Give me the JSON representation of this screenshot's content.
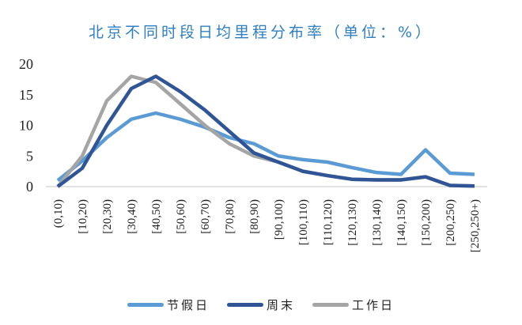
{
  "title": "北京不同时段日均里程分布率（单位：%）",
  "chart_data": {
    "type": "line",
    "title": "北京不同时段日均里程分布率（单位：%）",
    "xlabel": "",
    "ylabel": "",
    "ylim": [
      0,
      20
    ],
    "yticks": [
      0,
      5,
      10,
      15,
      20
    ],
    "grid": false,
    "legend_position": "bottom",
    "categories": [
      "(0,10)",
      "[10,20)",
      "[20,30)",
      "[30,40)",
      "[40,50)",
      "[50,60)",
      "[60,70)",
      "[70,80)",
      "[80,90)",
      "[90,100)",
      "[100,110)",
      "[110,120)",
      "[120,130)",
      "[130,140)",
      "[140,150)",
      "[150,200)",
      "[200,250)",
      "[250,250+)"
    ],
    "series": [
      {
        "name": "节假日",
        "color": "#5b9bd5",
        "values": [
          1,
          4.2,
          8,
          11,
          12,
          11,
          9.7,
          8,
          7,
          5,
          4.4,
          4,
          3.1,
          2.3,
          2,
          6,
          2.2,
          2
        ]
      },
      {
        "name": "周末",
        "color": "#2f5597",
        "values": [
          0,
          3,
          10,
          16,
          18,
          15.5,
          12.5,
          9,
          5.5,
          4,
          2.5,
          1.8,
          1.2,
          1.1,
          1.1,
          1.6,
          0.2,
          0.1
        ]
      },
      {
        "name": "工作日",
        "color": "#a5a5a5",
        "values": [
          0,
          5,
          14,
          18,
          17,
          13.5,
          10,
          7,
          5,
          4,
          2.5,
          1.8,
          1.2,
          1.1,
          1.1,
          1.6,
          0.2,
          0.1
        ]
      }
    ]
  }
}
